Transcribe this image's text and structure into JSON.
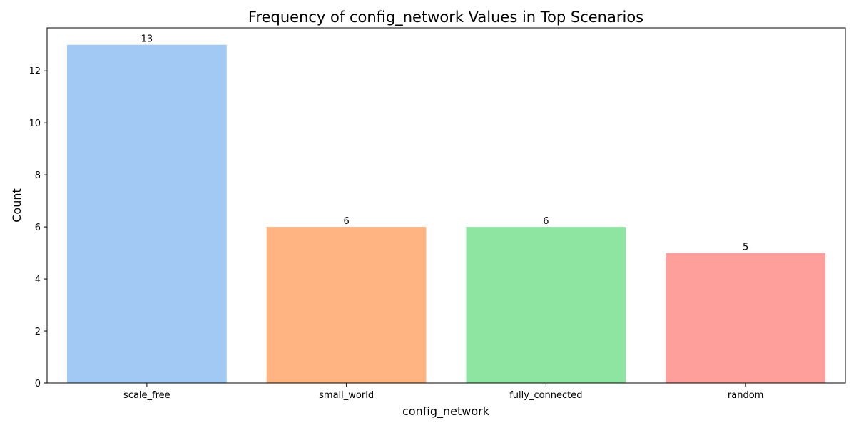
{
  "chart_data": {
    "type": "bar",
    "title": "Frequency of config_network Values in Top Scenarios",
    "xlabel": "config_network",
    "ylabel": "Count",
    "categories": [
      "scale_free",
      "small_world",
      "fully_connected",
      "random"
    ],
    "values": [
      13,
      6,
      6,
      5
    ],
    "data_labels": [
      "13",
      "6",
      "6",
      "5"
    ],
    "colors": [
      "#a1c9f4",
      "#ffb482",
      "#8de5a1",
      "#ff9f9b"
    ],
    "ylim": [
      0,
      13.65
    ],
    "yticks": [
      0,
      2,
      4,
      6,
      8,
      10,
      12
    ],
    "ytick_labels": [
      "0",
      "2",
      "4",
      "6",
      "8",
      "10",
      "12"
    ],
    "grid": false,
    "legend": "none"
  }
}
